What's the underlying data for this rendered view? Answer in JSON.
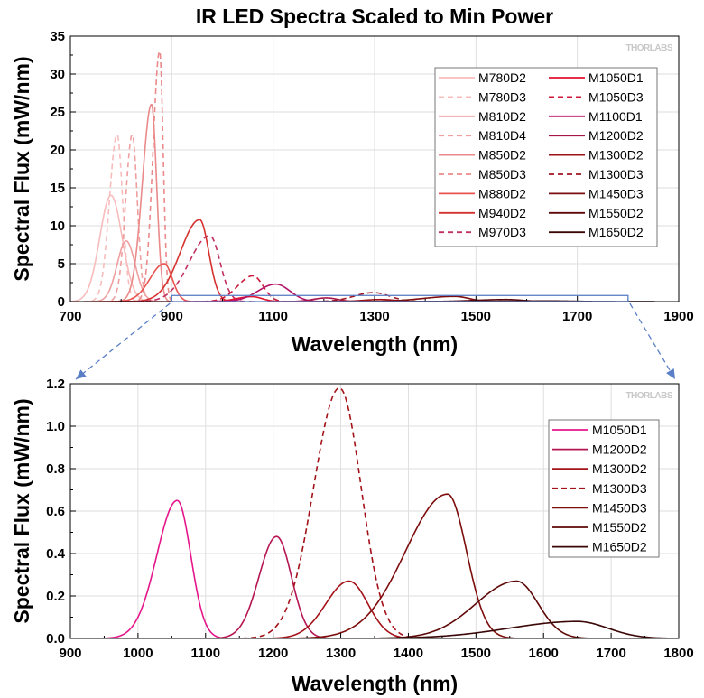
{
  "chart_data": [
    {
      "type": "line",
      "title": "IR LED Spectra Scaled to Min Power",
      "xlabel": "Wavelength (nm)",
      "ylabel": "Spectral Flux (mW/nm)",
      "xlim": [
        700,
        1900
      ],
      "ylim": [
        0,
        35
      ],
      "xticks": [
        700,
        900,
        1100,
        1300,
        1500,
        1700,
        1900
      ],
      "yticks": [
        0,
        5,
        10,
        15,
        20,
        25,
        30,
        35
      ],
      "xminor_step": 100,
      "yminor_step": 2.5,
      "grid": true,
      "brand": "THORLABS",
      "legend_position": "top-right",
      "zoom_region": {
        "x": [
          900,
          1800
        ],
        "y": [
          0,
          0.8
        ]
      },
      "series": [
        {
          "name": "M780D2",
          "color": "#f7bcbc",
          "dash": false,
          "peak": 780,
          "amp": 14.0,
          "wl": 22,
          "wr": 22
        },
        {
          "name": "M780D3",
          "color": "#f7bcbc",
          "dash": true,
          "peak": 792,
          "amp": 22.0,
          "wl": 15,
          "wr": 11
        },
        {
          "name": "M810D2",
          "color": "#ef9f9f",
          "dash": false,
          "peak": 810,
          "amp": 8.0,
          "wl": 18,
          "wr": 18
        },
        {
          "name": "M810D4",
          "color": "#ef9f9f",
          "dash": true,
          "peak": 822,
          "amp": 22.0,
          "wl": 13,
          "wr": 10
        },
        {
          "name": "M850D2",
          "color": "#ea8a8a",
          "dash": false,
          "peak": 860,
          "amp": 26.0,
          "wl": 18,
          "wr": 10
        },
        {
          "name": "M850D3",
          "color": "#ea8a8a",
          "dash": true,
          "peak": 876,
          "amp": 33.0,
          "wl": 13,
          "wr": 7
        },
        {
          "name": "M880D2",
          "color": "#e8534f",
          "dash": false,
          "peak": 885,
          "amp": 5.0,
          "wl": 28,
          "wr": 16
        },
        {
          "name": "M940D2",
          "color": "#d5322f",
          "dash": false,
          "peak": 955,
          "amp": 10.8,
          "wl": 38,
          "wr": 18
        },
        {
          "name": "M970D3",
          "color": "#c0305f",
          "dash": true,
          "peak": 975,
          "amp": 8.7,
          "wl": 40,
          "wr": 20
        },
        {
          "name": "M1050D1",
          "color": "#e3122f",
          "dash": false,
          "peak": 1058,
          "amp": 0.65,
          "wl": 30,
          "wr": 20
        },
        {
          "name": "M1050D3",
          "color": "#cc1a3a",
          "dash": true,
          "peak": 1060,
          "amp": 3.4,
          "wl": 30,
          "wr": 20
        },
        {
          "name": "M1100D1",
          "color": "#b31366",
          "dash": false,
          "peak": 1105,
          "amp": 2.3,
          "wl": 35,
          "wr": 28
        },
        {
          "name": "M1200D2",
          "color": "#a8154a",
          "dash": false,
          "peak": 1205,
          "amp": 0.48,
          "wl": 26,
          "wr": 22
        },
        {
          "name": "M1300D2",
          "color": "#9e1217",
          "dash": false,
          "peak": 1312,
          "amp": 0.27,
          "wl": 34,
          "wr": 28
        },
        {
          "name": "M1300D3",
          "color": "#a01420",
          "dash": true,
          "peak": 1298,
          "amp": 1.18,
          "wl": 38,
          "wr": 32
        },
        {
          "name": "M1450D3",
          "color": "#7a0c0c",
          "dash": false,
          "peak": 1458,
          "amp": 0.68,
          "wl": 62,
          "wr": 28
        },
        {
          "name": "M1550D2",
          "color": "#5c0808",
          "dash": false,
          "peak": 1560,
          "amp": 0.27,
          "wl": 60,
          "wr": 32
        },
        {
          "name": "M1650D2",
          "color": "#3a0606",
          "dash": false,
          "peak": 1650,
          "amp": 0.08,
          "wl": 100,
          "wr": 45
        }
      ]
    },
    {
      "type": "line",
      "title": "",
      "xlabel": "Wavelength (nm)",
      "ylabel": "Spectral Flux (mW/nm)",
      "xlim": [
        900,
        1800
      ],
      "ylim": [
        0,
        1.2
      ],
      "xticks": [
        900,
        1000,
        1100,
        1200,
        1300,
        1400,
        1500,
        1600,
        1700,
        1800
      ],
      "yticks": [
        0.0,
        0.2,
        0.4,
        0.6,
        0.8,
        1.0,
        1.2
      ],
      "ytick_labels": [
        "0.0",
        "0.2",
        "0.4",
        "0.6",
        "0.8",
        "1.0",
        "1.2"
      ],
      "xminor_step": 50,
      "yminor_step": 0.1,
      "grid": true,
      "brand": "THORLABS",
      "legend_position": "top-right",
      "series": [
        {
          "name": "M1050D1",
          "color": "#e5158a",
          "dash": false,
          "peak": 1058,
          "amp": 0.65,
          "wl": 30,
          "wr": 20
        },
        {
          "name": "M1200D2",
          "color": "#b51652",
          "dash": false,
          "peak": 1205,
          "amp": 0.48,
          "wl": 26,
          "wr": 22
        },
        {
          "name": "M1300D2",
          "color": "#a31218",
          "dash": false,
          "peak": 1312,
          "amp": 0.27,
          "wl": 34,
          "wr": 28
        },
        {
          "name": "M1300D3",
          "color": "#a31218",
          "dash": true,
          "peak": 1298,
          "amp": 1.18,
          "wl": 38,
          "wr": 32
        },
        {
          "name": "M1450D3",
          "color": "#7d0c0c",
          "dash": false,
          "peak": 1458,
          "amp": 0.68,
          "wl": 62,
          "wr": 28
        },
        {
          "name": "M1550D2",
          "color": "#5e0808",
          "dash": false,
          "peak": 1560,
          "amp": 0.27,
          "wl": 60,
          "wr": 32
        },
        {
          "name": "M1650D2",
          "color": "#3a0606",
          "dash": false,
          "peak": 1650,
          "amp": 0.08,
          "wl": 100,
          "wr": 45
        }
      ]
    }
  ]
}
